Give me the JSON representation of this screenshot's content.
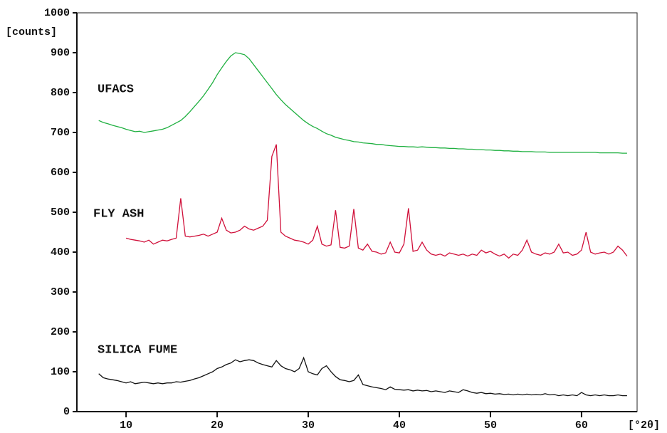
{
  "chart_data": {
    "type": "line",
    "y_label": "[counts]",
    "x_label": "[°2θ]",
    "xlim": [
      4.6,
      66.1
    ],
    "ylim": [
      0,
      1000
    ],
    "xticks": [
      10,
      20,
      30,
      40,
      50,
      60
    ],
    "yticks": [
      0,
      100,
      200,
      300,
      400,
      500,
      600,
      700,
      800,
      900,
      1000
    ],
    "x": [
      7,
      7.5,
      8,
      8.5,
      9,
      9.5,
      10,
      10.5,
      11,
      11.5,
      12,
      12.5,
      13,
      13.5,
      14,
      14.5,
      15,
      15.5,
      16,
      16.5,
      17,
      17.5,
      18,
      18.5,
      19,
      19.5,
      20,
      20.5,
      21,
      21.5,
      22,
      22.5,
      23,
      23.5,
      24,
      24.5,
      25,
      25.5,
      26,
      26.5,
      27,
      27.5,
      28,
      28.5,
      29,
      29.5,
      30,
      30.5,
      31,
      31.5,
      32,
      32.5,
      33,
      33.5,
      34,
      34.5,
      35,
      35.5,
      36,
      36.5,
      37,
      37.5,
      38,
      38.5,
      39,
      39.5,
      40,
      40.5,
      41,
      41.5,
      42,
      42.5,
      43,
      43.5,
      44,
      44.5,
      45,
      45.5,
      46,
      46.5,
      47,
      47.5,
      48,
      48.5,
      49,
      49.5,
      50,
      50.5,
      51,
      51.5,
      52,
      52.5,
      53,
      53.5,
      54,
      54.5,
      55,
      55.5,
      56,
      56.5,
      57,
      57.5,
      58,
      58.5,
      59,
      59.5,
      60,
      60.5,
      61,
      61.5,
      62,
      62.5,
      63,
      63.5,
      64,
      64.5,
      65
    ],
    "series": [
      {
        "name": "UFACS",
        "color": "#1fb040",
        "values": [
          730,
          725,
          722,
          718,
          715,
          712,
          708,
          705,
          702,
          703,
          700,
          702,
          704,
          706,
          708,
          712,
          718,
          724,
          730,
          740,
          752,
          765,
          778,
          792,
          808,
          825,
          845,
          862,
          878,
          892,
          900,
          898,
          895,
          885,
          870,
          855,
          840,
          825,
          810,
          795,
          782,
          770,
          760,
          750,
          740,
          730,
          722,
          715,
          710,
          703,
          697,
          693,
          688,
          685,
          682,
          680,
          677,
          676,
          674,
          673,
          672,
          670,
          670,
          668,
          667,
          666,
          665,
          665,
          664,
          664,
          663,
          664,
          663,
          662,
          662,
          661,
          661,
          660,
          660,
          659,
          659,
          658,
          658,
          657,
          657,
          656,
          656,
          655,
          655,
          654,
          654,
          653,
          653,
          652,
          652,
          652,
          651,
          651,
          651,
          650,
          650,
          650,
          650,
          650,
          650,
          650,
          650,
          650,
          650,
          650,
          649,
          649,
          649,
          649,
          649,
          648,
          648
        ]
      },
      {
        "name": "FLY ASH",
        "color": "#d0103a",
        "values": [
          null,
          null,
          null,
          null,
          null,
          null,
          435,
          432,
          430,
          428,
          425,
          430,
          420,
          425,
          430,
          428,
          432,
          435,
          535,
          440,
          438,
          440,
          442,
          445,
          440,
          445,
          450,
          485,
          455,
          448,
          450,
          455,
          465,
          458,
          455,
          460,
          465,
          480,
          640,
          670,
          450,
          440,
          435,
          430,
          428,
          425,
          420,
          430,
          465,
          420,
          415,
          418,
          505,
          412,
          410,
          415,
          508,
          410,
          405,
          420,
          402,
          400,
          395,
          398,
          425,
          400,
          398,
          420,
          510,
          402,
          405,
          425,
          405,
          395,
          392,
          395,
          390,
          398,
          395,
          392,
          395,
          390,
          395,
          392,
          405,
          398,
          402,
          395,
          390,
          395,
          385,
          395,
          392,
          405,
          430,
          400,
          395,
          392,
          398,
          395,
          400,
          420,
          398,
          400,
          392,
          395,
          405,
          450,
          400,
          395,
          398,
          400,
          395,
          400,
          415,
          405,
          390
        ]
      },
      {
        "name": "SILICA FUME",
        "color": "#111111",
        "values": [
          95,
          85,
          82,
          80,
          78,
          75,
          72,
          75,
          70,
          72,
          74,
          72,
          70,
          72,
          70,
          72,
          72,
          75,
          74,
          76,
          78,
          82,
          85,
          90,
          95,
          100,
          108,
          112,
          118,
          122,
          130,
          125,
          128,
          130,
          128,
          122,
          118,
          115,
          112,
          128,
          115,
          108,
          105,
          100,
          108,
          135,
          100,
          95,
          92,
          108,
          115,
          100,
          88,
          80,
          78,
          75,
          78,
          92,
          68,
          65,
          62,
          60,
          58,
          55,
          62,
          56,
          55,
          54,
          55,
          52,
          54,
          52,
          53,
          50,
          52,
          50,
          48,
          52,
          50,
          48,
          55,
          52,
          48,
          46,
          48,
          45,
          46,
          44,
          45,
          43,
          44,
          42,
          44,
          42,
          44,
          42,
          43,
          42,
          45,
          42,
          43,
          40,
          42,
          40,
          42,
          40,
          48,
          42,
          40,
          42,
          40,
          42,
          40,
          40,
          42,
          40,
          40
        ]
      }
    ]
  }
}
